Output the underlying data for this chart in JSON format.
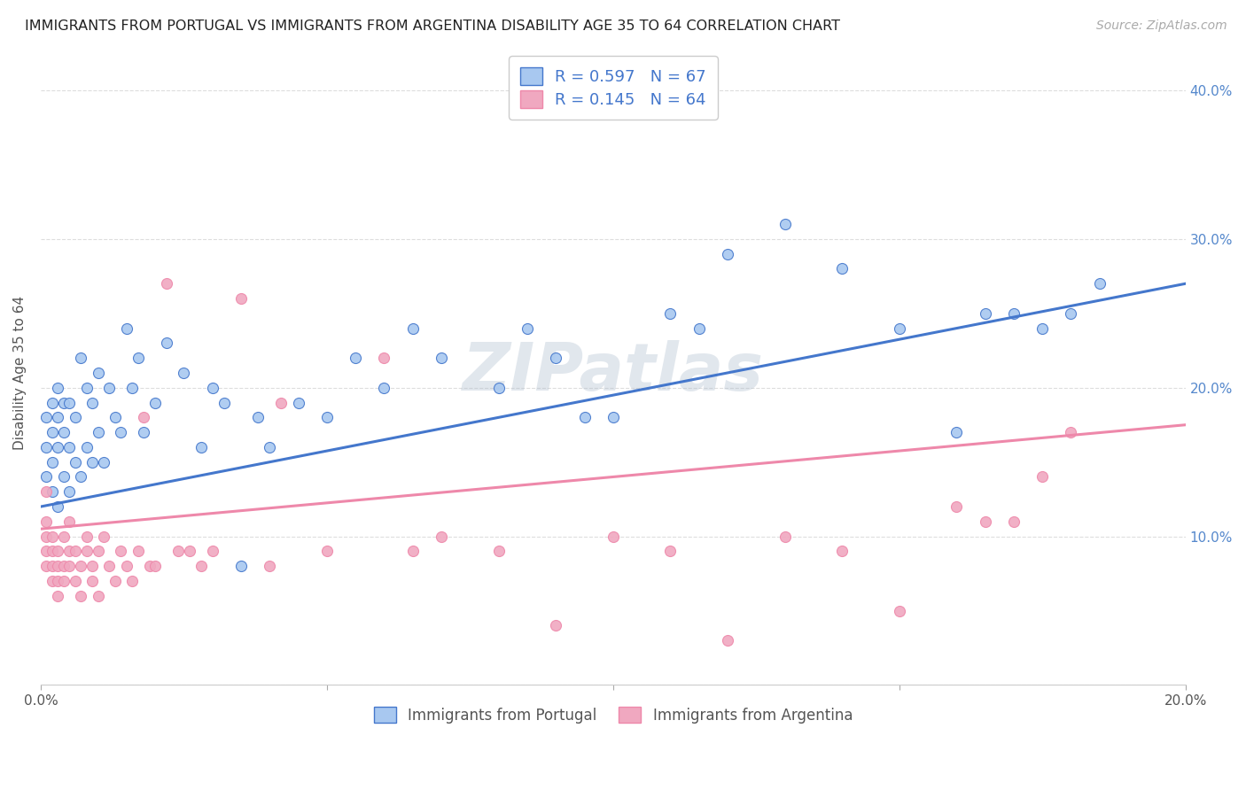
{
  "title": "IMMIGRANTS FROM PORTUGAL VS IMMIGRANTS FROM ARGENTINA DISABILITY AGE 35 TO 64 CORRELATION CHART",
  "source": "Source: ZipAtlas.com",
  "ylabel_label": "Disability Age 35 to 64",
  "xlim": [
    0.0,
    0.2
  ],
  "ylim": [
    0.0,
    0.42
  ],
  "xtick_vals": [
    0.0,
    0.05,
    0.1,
    0.15,
    0.2
  ],
  "xtick_labels": [
    "0.0%",
    "",
    "",
    "",
    "20.0%"
  ],
  "ytick_vals": [
    0.0,
    0.1,
    0.2,
    0.3,
    0.4
  ],
  "ytick_labels": [
    "",
    "10.0%",
    "20.0%",
    "30.0%",
    "40.0%"
  ],
  "portugal_color": "#a8c8f0",
  "argentina_color": "#f0a8c0",
  "portugal_line_color": "#4477cc",
  "argentina_line_color": "#ee88aa",
  "portugal_R": 0.597,
  "portugal_N": 67,
  "argentina_R": 0.145,
  "argentina_N": 64,
  "legend_label_portugal": "Immigrants from Portugal",
  "legend_label_argentina": "Immigrants from Argentina",
  "watermark": "ZIPatlas",
  "portugal_line_x0": 0.0,
  "portugal_line_y0": 0.12,
  "portugal_line_x1": 0.2,
  "portugal_line_y1": 0.27,
  "argentina_line_x0": 0.0,
  "argentina_line_y0": 0.105,
  "argentina_line_x1": 0.2,
  "argentina_line_y1": 0.175,
  "portugal_x": [
    0.001,
    0.001,
    0.001,
    0.002,
    0.002,
    0.002,
    0.002,
    0.003,
    0.003,
    0.003,
    0.003,
    0.004,
    0.004,
    0.004,
    0.005,
    0.005,
    0.005,
    0.006,
    0.006,
    0.007,
    0.007,
    0.008,
    0.008,
    0.009,
    0.009,
    0.01,
    0.01,
    0.011,
    0.012,
    0.013,
    0.014,
    0.015,
    0.016,
    0.017,
    0.018,
    0.02,
    0.022,
    0.025,
    0.028,
    0.03,
    0.032,
    0.035,
    0.038,
    0.04,
    0.045,
    0.05,
    0.055,
    0.06,
    0.065,
    0.07,
    0.08,
    0.085,
    0.09,
    0.095,
    0.1,
    0.11,
    0.115,
    0.12,
    0.13,
    0.14,
    0.15,
    0.16,
    0.165,
    0.17,
    0.175,
    0.18,
    0.185
  ],
  "portugal_y": [
    0.14,
    0.16,
    0.18,
    0.13,
    0.15,
    0.17,
    0.19,
    0.12,
    0.16,
    0.18,
    0.2,
    0.14,
    0.17,
    0.19,
    0.13,
    0.16,
    0.19,
    0.15,
    0.18,
    0.14,
    0.22,
    0.16,
    0.2,
    0.15,
    0.19,
    0.17,
    0.21,
    0.15,
    0.2,
    0.18,
    0.17,
    0.24,
    0.2,
    0.22,
    0.17,
    0.19,
    0.23,
    0.21,
    0.16,
    0.2,
    0.19,
    0.08,
    0.18,
    0.16,
    0.19,
    0.18,
    0.22,
    0.2,
    0.24,
    0.22,
    0.2,
    0.24,
    0.22,
    0.18,
    0.18,
    0.25,
    0.24,
    0.29,
    0.31,
    0.28,
    0.24,
    0.17,
    0.25,
    0.25,
    0.24,
    0.25,
    0.27
  ],
  "argentina_x": [
    0.001,
    0.001,
    0.001,
    0.001,
    0.001,
    0.002,
    0.002,
    0.002,
    0.002,
    0.003,
    0.003,
    0.003,
    0.003,
    0.004,
    0.004,
    0.004,
    0.005,
    0.005,
    0.005,
    0.006,
    0.006,
    0.007,
    0.007,
    0.008,
    0.008,
    0.009,
    0.009,
    0.01,
    0.01,
    0.011,
    0.012,
    0.013,
    0.014,
    0.015,
    0.016,
    0.017,
    0.018,
    0.019,
    0.02,
    0.022,
    0.024,
    0.026,
    0.028,
    0.03,
    0.035,
    0.04,
    0.042,
    0.05,
    0.06,
    0.065,
    0.07,
    0.08,
    0.09,
    0.1,
    0.11,
    0.12,
    0.13,
    0.14,
    0.15,
    0.16,
    0.165,
    0.17,
    0.175,
    0.18
  ],
  "argentina_y": [
    0.09,
    0.1,
    0.11,
    0.08,
    0.13,
    0.08,
    0.1,
    0.07,
    0.09,
    0.08,
    0.07,
    0.09,
    0.06,
    0.08,
    0.1,
    0.07,
    0.09,
    0.08,
    0.11,
    0.07,
    0.09,
    0.08,
    0.06,
    0.09,
    0.1,
    0.07,
    0.08,
    0.09,
    0.06,
    0.1,
    0.08,
    0.07,
    0.09,
    0.08,
    0.07,
    0.09,
    0.18,
    0.08,
    0.08,
    0.27,
    0.09,
    0.09,
    0.08,
    0.09,
    0.26,
    0.08,
    0.19,
    0.09,
    0.22,
    0.09,
    0.1,
    0.09,
    0.04,
    0.1,
    0.09,
    0.03,
    0.1,
    0.09,
    0.05,
    0.12,
    0.11,
    0.11,
    0.14,
    0.17
  ]
}
